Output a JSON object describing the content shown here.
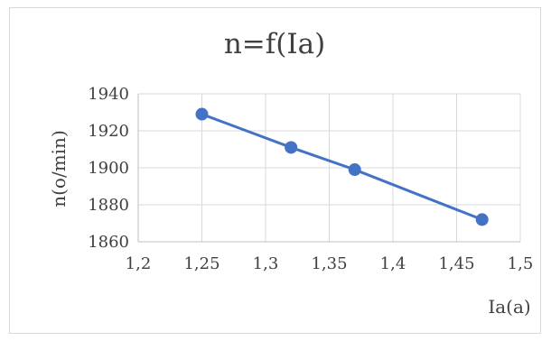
{
  "chart_data": {
    "type": "scatter",
    "title": "n=f(Ia)",
    "xlabel": "Ia(a)",
    "ylabel": "n(o/min)",
    "xlim": [
      1.2,
      1.5
    ],
    "ylim": [
      1860,
      1940
    ],
    "x_ticks": [
      "1,2",
      "1,25",
      "1,3",
      "1,35",
      "1,4",
      "1,45",
      "1,5"
    ],
    "y_ticks": [
      "1860",
      "1880",
      "1900",
      "1920",
      "1940"
    ],
    "x_tick_values": [
      1.2,
      1.25,
      1.3,
      1.35,
      1.4,
      1.45,
      1.5
    ],
    "y_tick_values": [
      1860,
      1880,
      1900,
      1920,
      1940
    ],
    "grid": true,
    "lines_connect_points": true,
    "series": [
      {
        "x": [
          1.25,
          1.32,
          1.37,
          1.47
        ],
        "y": [
          1929,
          1911,
          1899,
          1872
        ],
        "color": "#4472c4"
      }
    ]
  }
}
